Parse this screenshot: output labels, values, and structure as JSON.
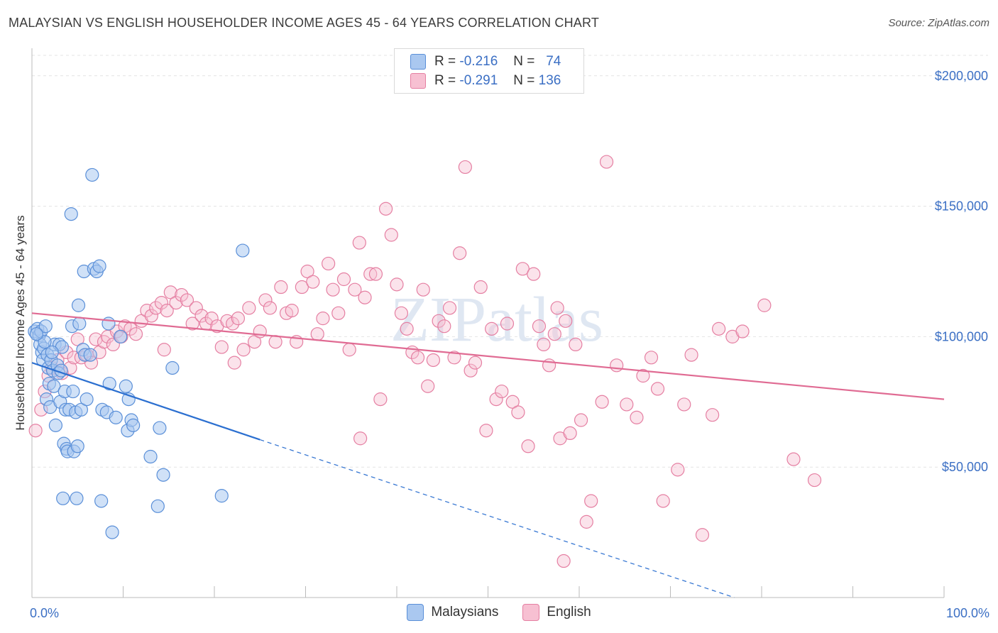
{
  "title": "MALAYSIAN VS ENGLISH HOUSEHOLDER INCOME AGES 45 - 64 YEARS CORRELATION CHART",
  "source": "Source: ZipAtlas.com",
  "watermark": "ZIPatlas",
  "legend": {
    "rows": [
      {
        "r_label": "R = ",
        "r_value": "-0.216",
        "n_label": "N = ",
        "n_value": "74",
        "color": "#aac8f0",
        "border": "#5a8fd8"
      },
      {
        "r_label": "R = ",
        "r_value": "-0.291",
        "n_label": "N = ",
        "n_value": "136",
        "color": "#f7c0d2",
        "border": "#e57fa2"
      }
    ]
  },
  "bottom_legend": [
    {
      "label": "Malaysians",
      "color": "#aac8f0",
      "border": "#5a8fd8"
    },
    {
      "label": "English",
      "color": "#f7c0d2",
      "border": "#e57fa2"
    }
  ],
  "chart_data": {
    "type": "scatter",
    "title": "MALAYSIAN VS ENGLISH HOUSEHOLDER INCOME AGES 45 - 64 YEARS CORRELATION CHART",
    "xlabel": "",
    "ylabel": "Householder Income Ages 45 - 64 years",
    "xlim": [
      0,
      100
    ],
    "ylim": [
      0,
      210000
    ],
    "x_tick_labels": [
      "0.0%",
      "100.0%"
    ],
    "y_ticks": [
      50000,
      100000,
      150000,
      200000
    ],
    "y_tick_labels": [
      "$50,000",
      "$100,000",
      "$150,000",
      "$200,000"
    ],
    "grid": true,
    "legend_position": "top-center",
    "series": [
      {
        "name": "Malaysians",
        "color": "#5a8fd8",
        "fill": "#aac8f0",
        "trend": {
          "x0": 0,
          "y0": 90000,
          "x1": 25,
          "y1": 60500,
          "dashed_to_x": 77,
          "dashed_to_y": 0,
          "line_color": "#2b6fd0"
        },
        "points": [
          [
            0.3,
            102000
          ],
          [
            0.6,
            103000
          ],
          [
            0.8,
            100500
          ],
          [
            0.9,
            97000
          ],
          [
            1.0,
            102000
          ],
          [
            1.1,
            94000
          ],
          [
            1.2,
            91000
          ],
          [
            1.3,
            95500
          ],
          [
            1.5,
            104000
          ],
          [
            1.6,
            76000
          ],
          [
            1.7,
            93000
          ],
          [
            1.8,
            88000
          ],
          [
            1.9,
            82000
          ],
          [
            2.0,
            73000
          ],
          [
            2.1,
            91000
          ],
          [
            2.3,
            87000
          ],
          [
            2.4,
            81000
          ],
          [
            2.5,
            97000
          ],
          [
            2.6,
            66000
          ],
          [
            2.8,
            89000
          ],
          [
            2.9,
            86000
          ],
          [
            3.0,
            97000
          ],
          [
            3.1,
            75000
          ],
          [
            3.2,
            87000
          ],
          [
            3.3,
            96000
          ],
          [
            3.4,
            38000
          ],
          [
            3.5,
            59000
          ],
          [
            3.6,
            79000
          ],
          [
            3.7,
            72000
          ],
          [
            3.8,
            57000
          ],
          [
            3.9,
            56000
          ],
          [
            4.1,
            72000
          ],
          [
            4.3,
            147000
          ],
          [
            4.4,
            104000
          ],
          [
            4.5,
            79000
          ],
          [
            4.6,
            56000
          ],
          [
            4.8,
            71000
          ],
          [
            4.9,
            38000
          ],
          [
            5.0,
            58000
          ],
          [
            5.1,
            112000
          ],
          [
            5.2,
            105000
          ],
          [
            5.4,
            72000
          ],
          [
            5.6,
            95000
          ],
          [
            5.7,
            125000
          ],
          [
            5.8,
            93000
          ],
          [
            6.0,
            76000
          ],
          [
            6.4,
            93000
          ],
          [
            6.6,
            162000
          ],
          [
            6.8,
            126000
          ],
          [
            7.1,
            125000
          ],
          [
            7.4,
            127000
          ],
          [
            7.6,
            37000
          ],
          [
            7.7,
            72000
          ],
          [
            8.2,
            71000
          ],
          [
            8.4,
            105000
          ],
          [
            8.5,
            82000
          ],
          [
            8.8,
            25000
          ],
          [
            9.2,
            69000
          ],
          [
            9.7,
            100000
          ],
          [
            10.3,
            81000
          ],
          [
            10.5,
            64000
          ],
          [
            10.6,
            76000
          ],
          [
            10.9,
            68000
          ],
          [
            11.1,
            66000
          ],
          [
            13.0,
            54000
          ],
          [
            14.0,
            65000
          ],
          [
            13.8,
            35000
          ],
          [
            14.4,
            47000
          ],
          [
            15.4,
            88000
          ],
          [
            20.8,
            39000
          ],
          [
            23.1,
            133000
          ],
          [
            1.4,
            98000
          ],
          [
            2.2,
            94000
          ],
          [
            0.5,
            101000
          ]
        ]
      },
      {
        "name": "English",
        "color": "#e57fa2",
        "fill": "#f7c0d2",
        "trend": {
          "x0": 0,
          "y0": 109000,
          "x1": 100,
          "y1": 76000,
          "line_color": "#e06b93"
        },
        "points": [
          [
            0.4,
            64000
          ],
          [
            1.0,
            72000
          ],
          [
            1.4,
            79000
          ],
          [
            1.8,
            85000
          ],
          [
            2.2,
            88000
          ],
          [
            2.8,
            91000
          ],
          [
            3.3,
            86000
          ],
          [
            3.8,
            94000
          ],
          [
            4.2,
            88000
          ],
          [
            4.6,
            92000
          ],
          [
            5.0,
            99000
          ],
          [
            5.4,
            92000
          ],
          [
            6.0,
            93000
          ],
          [
            6.5,
            90000
          ],
          [
            7.0,
            99000
          ],
          [
            7.4,
            94000
          ],
          [
            7.9,
            98000
          ],
          [
            8.3,
            100000
          ],
          [
            8.9,
            97000
          ],
          [
            9.3,
            102000
          ],
          [
            9.8,
            100000
          ],
          [
            10.2,
            104000
          ],
          [
            10.8,
            103000
          ],
          [
            11.4,
            101000
          ],
          [
            12.0,
            106000
          ],
          [
            12.6,
            110000
          ],
          [
            13.1,
            108000
          ],
          [
            13.6,
            111000
          ],
          [
            14.2,
            113000
          ],
          [
            14.8,
            110000
          ],
          [
            15.2,
            117000
          ],
          [
            15.8,
            113000
          ],
          [
            16.4,
            116000
          ],
          [
            17.0,
            114000
          ],
          [
            17.6,
            105000
          ],
          [
            18.0,
            111000
          ],
          [
            18.6,
            108000
          ],
          [
            19.1,
            105000
          ],
          [
            19.7,
            107000
          ],
          [
            20.3,
            104000
          ],
          [
            20.8,
            96000
          ],
          [
            21.4,
            106000
          ],
          [
            22.0,
            105000
          ],
          [
            22.6,
            107000
          ],
          [
            23.2,
            95000
          ],
          [
            23.8,
            111000
          ],
          [
            24.4,
            98000
          ],
          [
            25.0,
            102000
          ],
          [
            25.6,
            114000
          ],
          [
            26.1,
            111000
          ],
          [
            26.7,
            98000
          ],
          [
            27.3,
            119000
          ],
          [
            27.9,
            109000
          ],
          [
            28.5,
            110000
          ],
          [
            29.0,
            98000
          ],
          [
            29.6,
            119000
          ],
          [
            30.2,
            125000
          ],
          [
            30.8,
            121000
          ],
          [
            31.3,
            101000
          ],
          [
            31.9,
            107000
          ],
          [
            32.5,
            128000
          ],
          [
            33.0,
            118000
          ],
          [
            33.6,
            109000
          ],
          [
            34.2,
            122000
          ],
          [
            34.8,
            95000
          ],
          [
            35.4,
            118000
          ],
          [
            35.9,
            136000
          ],
          [
            36.5,
            115000
          ],
          [
            37.1,
            124000
          ],
          [
            37.7,
            124000
          ],
          [
            38.2,
            76000
          ],
          [
            38.8,
            149000
          ],
          [
            39.4,
            139000
          ],
          [
            40.0,
            120000
          ],
          [
            40.5,
            109000
          ],
          [
            41.1,
            103000
          ],
          [
            41.7,
            94000
          ],
          [
            42.3,
            92000
          ],
          [
            42.9,
            118000
          ],
          [
            43.4,
            81000
          ],
          [
            44.0,
            91000
          ],
          [
            44.6,
            106000
          ],
          [
            45.2,
            104000
          ],
          [
            45.8,
            111000
          ],
          [
            46.3,
            92000
          ],
          [
            46.9,
            132000
          ],
          [
            47.5,
            165000
          ],
          [
            48.1,
            87000
          ],
          [
            48.6,
            90000
          ],
          [
            49.2,
            119000
          ],
          [
            49.8,
            64000
          ],
          [
            50.4,
            103000
          ],
          [
            50.9,
            76000
          ],
          [
            51.5,
            79000
          ],
          [
            52.1,
            105000
          ],
          [
            52.7,
            75000
          ],
          [
            53.3,
            71000
          ],
          [
            53.8,
            126000
          ],
          [
            54.4,
            58000
          ],
          [
            55.0,
            124000
          ],
          [
            55.6,
            104000
          ],
          [
            56.1,
            97000
          ],
          [
            56.7,
            89000
          ],
          [
            57.3,
            101000
          ],
          [
            57.9,
            61000
          ],
          [
            58.5,
            106000
          ],
          [
            59.0,
            63000
          ],
          [
            59.6,
            97000
          ],
          [
            60.2,
            68000
          ],
          [
            60.8,
            29000
          ],
          [
            61.3,
            37000
          ],
          [
            62.5,
            75000
          ],
          [
            63.0,
            167000
          ],
          [
            64.1,
            89000
          ],
          [
            65.2,
            74000
          ],
          [
            66.3,
            69000
          ],
          [
            67.0,
            85000
          ],
          [
            68.6,
            80000
          ],
          [
            69.2,
            37000
          ],
          [
            70.8,
            49000
          ],
          [
            71.5,
            74000
          ],
          [
            72.3,
            93000
          ],
          [
            73.5,
            24000
          ],
          [
            74.6,
            70000
          ],
          [
            75.3,
            103000
          ],
          [
            76.8,
            100000
          ],
          [
            77.9,
            102000
          ],
          [
            80.3,
            112000
          ],
          [
            83.5,
            53000
          ],
          [
            85.8,
            45000
          ],
          [
            57.6,
            111000
          ],
          [
            67.9,
            92000
          ],
          [
            58.3,
            14000
          ],
          [
            22.2,
            90000
          ],
          [
            14.5,
            95000
          ],
          [
            36.0,
            61000
          ]
        ]
      }
    ]
  }
}
